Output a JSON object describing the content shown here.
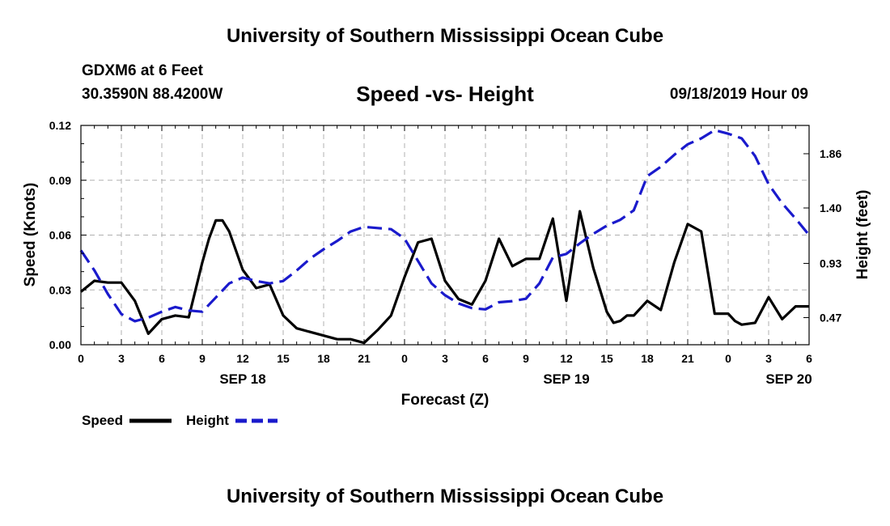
{
  "header": {
    "title": "University of Southern Mississippi Ocean Cube",
    "station": "GDXM6 at 6 Feet",
    "coords": "30.3590N 88.4200W",
    "subtitle": "Speed -vs- Height",
    "datetime": "09/18/2019 Hour 09"
  },
  "footer": {
    "title": "University of Southern Mississippi Ocean Cube"
  },
  "colors": {
    "speed": "#000000",
    "height": "#1a1acc",
    "grid": "#b0b0b0"
  },
  "chart_data": {
    "type": "line",
    "title": "Speed -vs- Height",
    "xlabel": "Forecast (Z)",
    "ylabel": "Speed (Knots)",
    "y2label": "Height (feet)",
    "xlim": [
      0,
      54
    ],
    "ylim": [
      0,
      0.12
    ],
    "y2lim": [
      0.24,
      2.1
    ],
    "x_ticks": [
      0,
      3,
      6,
      9,
      12,
      15,
      18,
      21,
      24,
      27,
      30,
      33,
      36,
      39,
      42,
      45,
      48,
      51,
      54
    ],
    "x_tick_labels": [
      "0",
      "3",
      "6",
      "9",
      "12",
      "15",
      "18",
      "21",
      "0",
      "3",
      "6",
      "9",
      "12",
      "15",
      "18",
      "21",
      "0",
      "3",
      "6"
    ],
    "y_ticks": [
      0,
      0.03,
      0.06,
      0.09,
      0.12
    ],
    "y_tick_labels": [
      "0.00",
      "0.03",
      "0.06",
      "0.09",
      "0.12"
    ],
    "y2_ticks": [
      0.47,
      0.93,
      1.4,
      1.86
    ],
    "y2_tick_labels": [
      "0.47",
      "0.93",
      "1.40",
      "1.86"
    ],
    "date_labels": [
      {
        "x": 12,
        "label": "SEP 18"
      },
      {
        "x": 36,
        "label": "SEP 19"
      },
      {
        "x": 52.5,
        "label": "SEP 20"
      }
    ],
    "legend": {
      "placement": "bottom-left"
    },
    "series": [
      {
        "name": "Speed",
        "axis": "left",
        "style": "solid",
        "x": [
          0,
          1,
          2,
          3,
          4,
          5,
          6,
          7,
          8,
          9,
          9.5,
          10,
          10.5,
          11,
          12,
          13,
          14,
          15,
          16,
          17,
          18,
          19,
          20,
          21,
          22,
          23,
          24,
          25,
          26,
          27,
          28,
          29,
          30,
          31,
          32,
          33,
          34,
          35,
          36,
          37,
          38,
          39,
          39.5,
          40,
          40.5,
          41,
          42,
          43,
          44,
          45,
          46,
          47,
          48,
          48.5,
          49,
          50,
          51,
          52,
          53,
          54
        ],
        "values": [
          0.029,
          0.035,
          0.034,
          0.034,
          0.024,
          0.006,
          0.014,
          0.016,
          0.015,
          0.045,
          0.058,
          0.068,
          0.068,
          0.062,
          0.041,
          0.031,
          0.033,
          0.016,
          0.009,
          0.007,
          0.005,
          0.003,
          0.003,
          0.001,
          0.008,
          0.016,
          0.037,
          0.056,
          0.058,
          0.035,
          0.025,
          0.022,
          0.035,
          0.058,
          0.043,
          0.047,
          0.047,
          0.069,
          0.024,
          0.073,
          0.042,
          0.018,
          0.012,
          0.013,
          0.016,
          0.016,
          0.024,
          0.019,
          0.045,
          0.066,
          0.062,
          0.017,
          0.017,
          0.013,
          0.011,
          0.012,
          0.026,
          0.014,
          0.021,
          0.021
        ]
      },
      {
        "name": "Height",
        "axis": "right",
        "style": "dashed",
        "x": [
          0,
          1,
          2,
          3,
          4,
          5,
          6,
          7,
          8,
          9,
          10,
          11,
          12,
          13,
          14,
          15,
          16,
          17,
          18,
          19,
          20,
          21,
          22,
          23,
          24,
          25,
          26,
          27,
          28,
          29,
          30,
          31,
          32,
          33,
          34,
          35,
          36,
          37,
          38,
          39,
          40,
          41,
          42,
          43,
          44,
          45,
          46,
          47,
          48,
          49,
          50,
          51,
          52,
          53,
          54
        ],
        "values": [
          1.04,
          0.87,
          0.67,
          0.5,
          0.44,
          0.47,
          0.52,
          0.56,
          0.53,
          0.52,
          0.64,
          0.76,
          0.81,
          0.78,
          0.76,
          0.78,
          0.87,
          0.97,
          1.05,
          1.12,
          1.2,
          1.24,
          1.23,
          1.22,
          1.14,
          0.95,
          0.76,
          0.66,
          0.59,
          0.55,
          0.54,
          0.6,
          0.61,
          0.63,
          0.76,
          0.98,
          1.01,
          1.1,
          1.18,
          1.25,
          1.3,
          1.38,
          1.67,
          1.75,
          1.85,
          1.94,
          1.99,
          2.06,
          2.03,
          1.99,
          1.84,
          1.6,
          1.44,
          1.31,
          1.17
        ]
      }
    ]
  }
}
